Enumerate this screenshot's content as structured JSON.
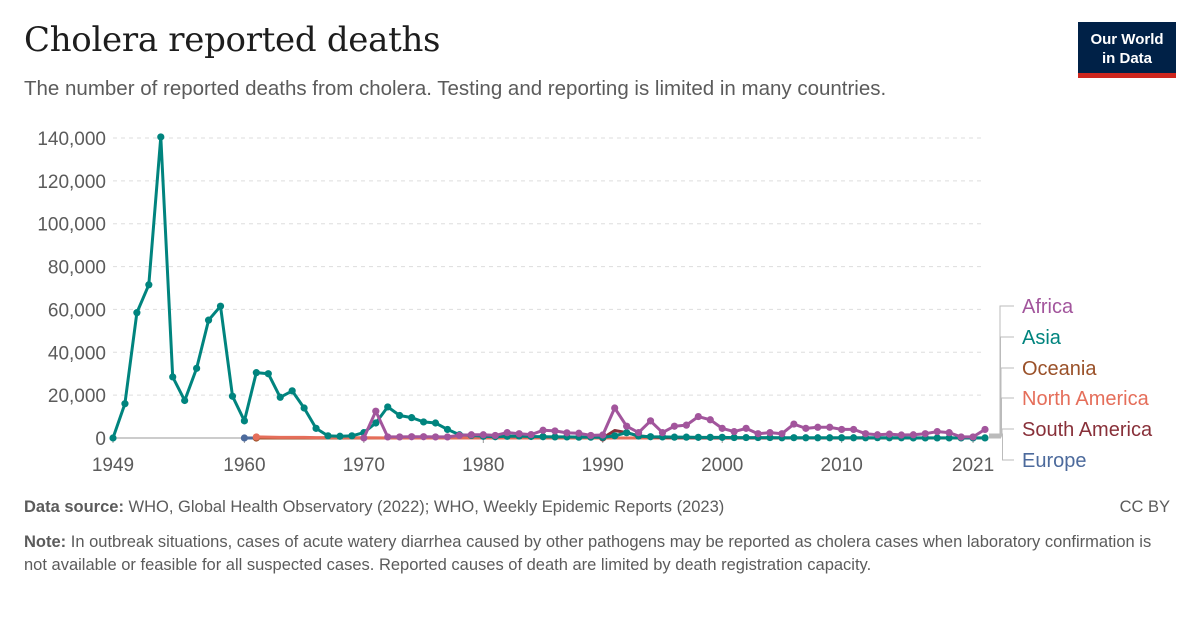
{
  "header": {
    "title": "Cholera reported deaths",
    "subtitle": "The number of reported deaths from cholera. Testing and reporting is limited in many countries."
  },
  "logo": {
    "line1": "Our World",
    "line2": "in Data"
  },
  "footer": {
    "source_label": "Data source:",
    "source_text": "WHO, Global Health Observatory (2022); WHO, Weekly Epidemic Reports (2023)",
    "license": "CC BY",
    "note_label": "Note:",
    "note_text": "In outbreak situations, cases of acute watery diarrhea caused by other pathogens may be reported as cholera cases when laboratory confirmation is not available or feasible for all suspected cases. Reported causes of death are limited by death registration capacity."
  },
  "chart_data": {
    "type": "line",
    "title": "Cholera reported deaths",
    "xlim": [
      1949,
      2022
    ],
    "ylim": [
      0,
      140000
    ],
    "x_ticks": [
      1949,
      1960,
      1970,
      1980,
      1990,
      2000,
      2010,
      2021
    ],
    "y_ticks": [
      0,
      20000,
      40000,
      60000,
      80000,
      100000,
      120000,
      140000
    ],
    "y_tick_labels": [
      "0",
      "20,000",
      "40,000",
      "60,000",
      "80,000",
      "100,000",
      "120,000",
      "140,000"
    ],
    "grid": "horizontal-dashed",
    "legend_placement": "right-end-labels",
    "series": [
      {
        "name": "Asia",
        "color": "#00847e",
        "x": [
          1949,
          1950,
          1951,
          1952,
          1953,
          1954,
          1955,
          1956,
          1957,
          1958,
          1959,
          1960,
          1961,
          1962,
          1963,
          1964,
          1965,
          1966,
          1967,
          1968,
          1969,
          1970,
          1971,
          1972,
          1973,
          1974,
          1975,
          1976,
          1977,
          1978,
          1979,
          1980,
          1981,
          1982,
          1983,
          1984,
          1985,
          1986,
          1987,
          1988,
          1989,
          1990,
          1991,
          1992,
          1993,
          1994,
          1995,
          1996,
          1997,
          1998,
          1999,
          2000,
          2001,
          2002,
          2003,
          2004,
          2005,
          2006,
          2007,
          2008,
          2009,
          2010,
          2011,
          2012,
          2013,
          2014,
          2015,
          2016,
          2017,
          2018,
          2019,
          2020,
          2021,
          2022
        ],
        "values": [
          0,
          16000,
          58500,
          71500,
          140500,
          28500,
          17500,
          32500,
          55000,
          61500,
          19500,
          8000,
          30500,
          30000,
          19000,
          22000,
          14000,
          4500,
          1000,
          800,
          1000,
          2500,
          7000,
          14500,
          10500,
          9500,
          7500,
          7000,
          4000,
          1500,
          1200,
          800,
          600,
          800,
          900,
          700,
          600,
          500,
          500,
          400,
          400,
          300,
          1000,
          2500,
          900,
          600,
          500,
          400,
          400,
          300,
          300,
          300,
          200,
          200,
          200,
          200,
          100,
          150,
          100,
          100,
          100,
          100,
          100,
          100,
          150,
          100,
          100,
          50,
          50,
          50,
          50,
          50,
          50,
          50
        ]
      },
      {
        "name": "Africa",
        "color": "#a2559c",
        "x": [
          1970,
          1971,
          1972,
          1973,
          1974,
          1975,
          1976,
          1977,
          1978,
          1979,
          1980,
          1981,
          1982,
          1983,
          1984,
          1985,
          1986,
          1987,
          1988,
          1989,
          1990,
          1991,
          1992,
          1993,
          1994,
          1995,
          1996,
          1997,
          1998,
          1999,
          2000,
          2001,
          2002,
          2003,
          2004,
          2005,
          2006,
          2007,
          2008,
          2009,
          2010,
          2011,
          2012,
          2013,
          2014,
          2015,
          2016,
          2017,
          2018,
          2019,
          2020,
          2021,
          2022
        ],
        "values": [
          0,
          12500,
          500,
          500,
          600,
          600,
          500,
          500,
          1200,
          1500,
          1500,
          1200,
          2500,
          2000,
          1600,
          3600,
          3300,
          2400,
          2200,
          1200,
          1400,
          14000,
          5500,
          2500,
          8000,
          2500,
          5500,
          6000,
          10000,
          8500,
          4500,
          3000,
          4500,
          2000,
          2500,
          2000,
          6500,
          4500,
          5000,
          5000,
          4000,
          4000,
          2000,
          1500,
          1800,
          1400,
          1500,
          2000,
          3000,
          2500,
          500,
          500,
          4000
        ]
      },
      {
        "name": "Oceania",
        "color": "#9a5129",
        "x": [
          1961,
          1970,
          1980,
          1990,
          2000,
          2010,
          2020,
          2022
        ],
        "values": [
          0,
          0,
          0,
          0,
          0,
          0,
          0,
          0
        ]
      },
      {
        "name": "North America",
        "color": "#e56e5a",
        "x": [
          1961,
          1962,
          1963,
          1964,
          1965,
          1966,
          1967,
          1968,
          1969,
          1970,
          1975,
          1980,
          1990,
          1995,
          2000,
          2010,
          2020,
          2022
        ],
        "values": [
          500,
          400,
          300,
          300,
          300,
          200,
          200,
          200,
          100,
          100,
          0,
          0,
          0,
          0,
          0,
          0,
          0,
          0
        ]
      },
      {
        "name": "South America",
        "color": "#883039",
        "x": [
          1990,
          1991,
          1992,
          1993,
          1994,
          1995,
          1996,
          2000,
          2010,
          2020,
          2022
        ],
        "values": [
          0,
          3500,
          2500,
          1000,
          500,
          200,
          100,
          0,
          0,
          0,
          0
        ]
      },
      {
        "name": "Europe",
        "color": "#4c6a9c",
        "x": [
          1960,
          1970,
          1980,
          1990,
          2000,
          2010,
          2020,
          2022
        ],
        "values": [
          0,
          0,
          0,
          0,
          0,
          0,
          0,
          0
        ]
      }
    ]
  }
}
